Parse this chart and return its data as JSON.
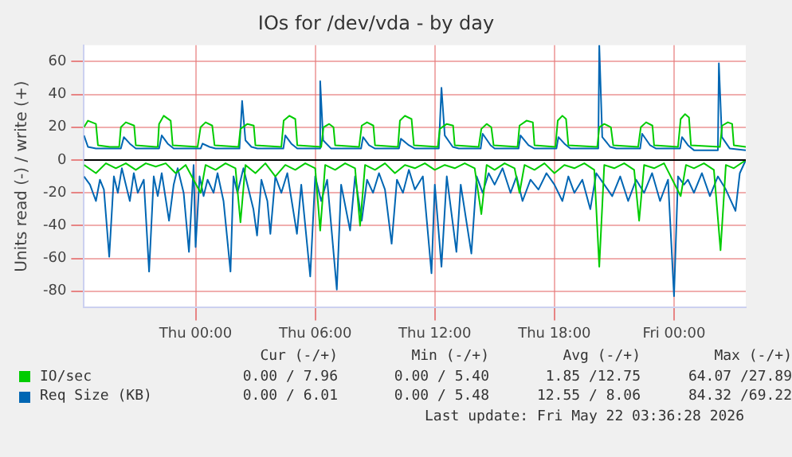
{
  "chart_data": {
    "type": "line",
    "title": "IOs for /dev/vda - by day",
    "ylabel": "Units read (-) / write (+)",
    "xlim": [
      "2026-05-20T18:24",
      "2026-05-22T03:36"
    ],
    "xticks": [
      {
        "value": "2026-05-21T00:00",
        "label": "Thu 00:00"
      },
      {
        "value": "2026-05-21T06:00",
        "label": "Thu 06:00"
      },
      {
        "value": "2026-05-21T12:00",
        "label": "Thu 12:00"
      },
      {
        "value": "2026-05-21T18:00",
        "label": "Thu 18:00"
      },
      {
        "value": "2026-05-22T00:00",
        "label": "Fri 00:00"
      }
    ],
    "ylim": [
      -90,
      70
    ],
    "yticks": [
      -80,
      -60,
      -40,
      -20,
      0,
      20,
      40,
      60
    ],
    "grid": true,
    "legend": "bottom",
    "marker": "none",
    "line_style": "solid",
    "ref_lines": [
      {
        "axis": "y",
        "value": 0,
        "color": "#000000"
      }
    ],
    "annotations": [
      "Cur (-/+)",
      "Min (-/+)",
      "Avg (-/+)",
      "Max (-/+)",
      "0.00 / 7.96",
      "0.00 / 5.40",
      "1.85 /12.75",
      "64.07 /27.89",
      "0.00 / 6.01",
      "0.00 / 5.48",
      "12.55 / 8.06",
      "84.32 /69.22",
      "Last update: Fri May 22 03:36:28 2026"
    ],
    "series": [
      {
        "color": "#00cc00",
        "x": [
          "2026-05-20T18:24",
          "2026-05-20T19:00",
          "2026-05-20T19:30",
          "2026-05-20T20:00",
          "2026-05-20T20:30",
          "2026-05-20T21:00",
          "2026-05-20T21:30",
          "2026-05-20T22:00",
          "2026-05-20T22:30",
          "2026-05-20T23:00",
          "2026-05-20T23:30",
          "2026-05-21T00:15",
          "2026-05-21T00:30",
          "2026-05-21T01:00",
          "2026-05-21T01:30",
          "2026-05-21T02:00",
          "2026-05-21T02:15",
          "2026-05-21T02:30",
          "2026-05-21T03:00",
          "2026-05-21T03:30",
          "2026-05-21T04:00",
          "2026-05-21T04:30",
          "2026-05-21T05:00",
          "2026-05-21T05:30",
          "2026-05-21T06:00",
          "2026-05-21T06:15",
          "2026-05-21T06:30",
          "2026-05-21T07:00",
          "2026-05-21T07:30",
          "2026-05-21T08:00",
          "2026-05-21T08:15",
          "2026-05-21T08:30",
          "2026-05-21T09:00",
          "2026-05-21T09:30",
          "2026-05-21T10:00",
          "2026-05-21T10:30",
          "2026-05-21T11:00",
          "2026-05-21T11:30",
          "2026-05-21T12:00",
          "2026-05-21T12:30",
          "2026-05-21T13:00",
          "2026-05-21T13:30",
          "2026-05-21T14:00",
          "2026-05-21T14:20",
          "2026-05-21T14:36",
          "2026-05-21T15:00",
          "2026-05-21T15:30",
          "2026-05-21T16:00",
          "2026-05-21T16:15",
          "2026-05-21T16:30",
          "2026-05-21T17:00",
          "2026-05-21T17:30",
          "2026-05-21T18:00",
          "2026-05-21T18:30",
          "2026-05-21T19:00",
          "2026-05-21T19:30",
          "2026-05-21T20:00",
          "2026-05-21T20:15",
          "2026-05-21T20:30",
          "2026-05-21T21:00",
          "2026-05-21T21:30",
          "2026-05-21T22:00",
          "2026-05-21T22:15",
          "2026-05-21T22:30",
          "2026-05-21T23:00",
          "2026-05-21T23:30",
          "2026-05-22T00:20",
          "2026-05-22T00:36",
          "2026-05-22T01:00",
          "2026-05-22T01:30",
          "2026-05-22T02:00",
          "2026-05-22T02:20",
          "2026-05-22T02:36",
          "2026-05-22T03:00",
          "2026-05-22T03:36"
        ],
        "values": [
          -3,
          -8,
          -2,
          -5,
          -2,
          -6,
          -2,
          -4,
          -2,
          -8,
          -3,
          -20,
          -3,
          -6,
          -2,
          -5,
          -38,
          -3,
          -8,
          -2,
          -10,
          -3,
          -6,
          -2,
          -5,
          -43,
          -3,
          -6,
          -2,
          -5,
          -40,
          -3,
          -6,
          -2,
          -8,
          -3,
          -5,
          -2,
          -6,
          -3,
          -5,
          -2,
          -5,
          -33,
          -3,
          -6,
          -2,
          -5,
          -20,
          -3,
          -6,
          -2,
          -8,
          -3,
          -5,
          -2,
          -6,
          -65,
          -3,
          -5,
          -2,
          -6,
          -37,
          -3,
          -5,
          -2,
          -22,
          -3,
          -5,
          -2,
          -6,
          -55,
          -3,
          -5,
          0
        ]
      },
      {
        "name": "IO/sec",
        "color": "#00cc00",
        "x": [
          "2026-05-20T18:24",
          "2026-05-20T18:36",
          "2026-05-20T19:00",
          "2026-05-20T19:06",
          "2026-05-20T19:42",
          "2026-05-20T20:10",
          "2026-05-20T20:15",
          "2026-05-20T20:30",
          "2026-05-20T20:55",
          "2026-05-20T21:00",
          "2026-05-20T22:00",
          "2026-05-20T22:06",
          "2026-05-20T22:10",
          "2026-05-20T22:24",
          "2026-05-20T22:45",
          "2026-05-20T22:51",
          "2026-05-21T00:06",
          "2026-05-21T00:15",
          "2026-05-21T00:30",
          "2026-05-21T00:50",
          "2026-05-21T00:57",
          "2026-05-21T02:09",
          "2026-05-21T02:15",
          "2026-05-21T02:36",
          "2026-05-21T02:55",
          "2026-05-21T03:00",
          "2026-05-21T04:18",
          "2026-05-21T04:25",
          "2026-05-21T04:42",
          "2026-05-21T05:00",
          "2026-05-21T05:06",
          "2026-05-21T06:18",
          "2026-05-21T06:25",
          "2026-05-21T06:42",
          "2026-05-21T06:55",
          "2026-05-21T07:00",
          "2026-05-21T08:12",
          "2026-05-21T08:20",
          "2026-05-21T08:36",
          "2026-05-21T08:55",
          "2026-05-21T09:00",
          "2026-05-21T10:09",
          "2026-05-21T10:15",
          "2026-05-21T10:30",
          "2026-05-21T10:50",
          "2026-05-21T10:57",
          "2026-05-21T12:09",
          "2026-05-21T12:15",
          "2026-05-21T12:36",
          "2026-05-21T12:55",
          "2026-05-21T13:00",
          "2026-05-21T14:12",
          "2026-05-21T14:20",
          "2026-05-21T14:36",
          "2026-05-21T14:50",
          "2026-05-21T14:57",
          "2026-05-21T16:09",
          "2026-05-21T16:15",
          "2026-05-21T16:36",
          "2026-05-21T16:55",
          "2026-05-21T17:00",
          "2026-05-21T18:03",
          "2026-05-21T18:10",
          "2026-05-21T18:24",
          "2026-05-21T18:35",
          "2026-05-21T18:42",
          "2026-05-21T20:09",
          "2026-05-21T20:15",
          "2026-05-21T20:30",
          "2026-05-21T20:50",
          "2026-05-21T20:57",
          "2026-05-21T22:12",
          "2026-05-21T22:20",
          "2026-05-21T22:36",
          "2026-05-21T22:55",
          "2026-05-21T23:00",
          "2026-05-22T00:12",
          "2026-05-22T00:20",
          "2026-05-22T00:33",
          "2026-05-22T00:45",
          "2026-05-22T00:51",
          "2026-05-22T02:18",
          "2026-05-22T02:25",
          "2026-05-22T02:42",
          "2026-05-22T02:55",
          "2026-05-22T03:00",
          "2026-05-22T03:36"
        ],
        "values": [
          20,
          24,
          22,
          9,
          8,
          8,
          20,
          23,
          21,
          9,
          8,
          8,
          22,
          27,
          24,
          9,
          8,
          20,
          23,
          21,
          9,
          8,
          19,
          22,
          21,
          9,
          8,
          24,
          27,
          25,
          9,
          8,
          20,
          22,
          20,
          9,
          8,
          21,
          23,
          21,
          9,
          8,
          24,
          27,
          25,
          9,
          8,
          19,
          22,
          21,
          9,
          8,
          19,
          22,
          20,
          9,
          8,
          21,
          24,
          23,
          9,
          8,
          24,
          27,
          25,
          9,
          8,
          20,
          22,
          20,
          9,
          8,
          20,
          23,
          21,
          9,
          8,
          25,
          28,
          26,
          9,
          8,
          21,
          23,
          22,
          9,
          8
        ]
      },
      {
        "color": "#0066b3",
        "x": [
          "2026-05-20T18:24",
          "2026-05-20T18:42",
          "2026-05-20T19:00",
          "2026-05-20T19:12",
          "2026-05-20T19:24",
          "2026-05-20T19:40",
          "2026-05-20T19:54",
          "2026-05-20T20:06",
          "2026-05-20T20:18",
          "2026-05-20T20:30",
          "2026-05-20T20:42",
          "2026-05-20T20:54",
          "2026-05-20T21:06",
          "2026-05-20T21:24",
          "2026-05-20T21:40",
          "2026-05-20T21:54",
          "2026-05-20T22:06",
          "2026-05-20T22:18",
          "2026-05-20T22:40",
          "2026-05-20T22:54",
          "2026-05-20T23:06",
          "2026-05-20T23:24",
          "2026-05-20T23:40",
          "2026-05-20T23:54",
          "2026-05-21T00:00",
          "2026-05-21T00:12",
          "2026-05-21T00:24",
          "2026-05-21T00:36",
          "2026-05-21T00:54",
          "2026-05-21T01:06",
          "2026-05-21T01:24",
          "2026-05-21T01:45",
          "2026-05-21T01:54",
          "2026-05-21T02:06",
          "2026-05-21T02:24",
          "2026-05-21T02:36",
          "2026-05-21T02:54",
          "2026-05-21T03:05",
          "2026-05-21T03:18",
          "2026-05-21T03:36",
          "2026-05-21T03:45",
          "2026-05-21T04:00",
          "2026-05-21T04:18",
          "2026-05-21T04:36",
          "2026-05-21T05:05",
          "2026-05-21T05:18",
          "2026-05-21T05:45",
          "2026-05-21T06:00",
          "2026-05-21T06:18",
          "2026-05-21T06:36",
          "2026-05-21T07:05",
          "2026-05-21T07:18",
          "2026-05-21T07:45",
          "2026-05-21T08:00",
          "2026-05-21T08:20",
          "2026-05-21T08:36",
          "2026-05-21T08:54",
          "2026-05-21T09:12",
          "2026-05-21T09:30",
          "2026-05-21T09:50",
          "2026-05-21T10:06",
          "2026-05-21T10:24",
          "2026-05-21T10:42",
          "2026-05-21T11:00",
          "2026-05-21T11:24",
          "2026-05-21T11:50",
          "2026-05-21T12:00",
          "2026-05-21T12:20",
          "2026-05-21T12:36",
          "2026-05-21T13:05",
          "2026-05-21T13:18",
          "2026-05-21T13:50",
          "2026-05-21T14:06",
          "2026-05-21T14:24",
          "2026-05-21T14:42",
          "2026-05-21T15:00",
          "2026-05-21T15:24",
          "2026-05-21T15:48",
          "2026-05-21T16:06",
          "2026-05-21T16:24",
          "2026-05-21T16:48",
          "2026-05-21T17:12",
          "2026-05-21T17:36",
          "2026-05-21T18:00",
          "2026-05-21T18:24",
          "2026-05-21T18:42",
          "2026-05-21T19:00",
          "2026-05-21T19:24",
          "2026-05-21T19:48",
          "2026-05-21T20:06",
          "2026-05-21T20:30",
          "2026-05-21T20:54",
          "2026-05-21T21:18",
          "2026-05-21T21:42",
          "2026-05-21T22:06",
          "2026-05-21T22:30",
          "2026-05-21T22:54",
          "2026-05-21T23:18",
          "2026-05-21T23:42",
          "2026-05-22T00:00",
          "2026-05-22T00:12",
          "2026-05-22T00:30",
          "2026-05-22T00:42",
          "2026-05-22T01:00",
          "2026-05-22T01:24",
          "2026-05-22T01:48",
          "2026-05-22T02:12",
          "2026-05-22T02:36",
          "2026-05-22T03:05",
          "2026-05-22T03:18",
          "2026-05-22T03:36"
        ],
        "values": [
          -10,
          -15,
          -25,
          -12,
          -18,
          -59,
          -10,
          -20,
          -5,
          -15,
          -25,
          -8,
          -20,
          -12,
          -68,
          -10,
          -22,
          -8,
          -37,
          -15,
          -5,
          -20,
          -56,
          -3,
          -53,
          -10,
          -22,
          -12,
          -20,
          -8,
          -25,
          -68,
          -10,
          -20,
          -5,
          -15,
          -30,
          -46,
          -12,
          -25,
          -45,
          -10,
          -20,
          -8,
          -45,
          -15,
          -71,
          -10,
          -25,
          -12,
          -79,
          -15,
          -43,
          -10,
          -37,
          -12,
          -20,
          -8,
          -18,
          -51,
          -12,
          -20,
          -6,
          -18,
          -10,
          -69,
          -15,
          -65,
          -10,
          -56,
          -15,
          -57,
          -10,
          -20,
          -8,
          -15,
          -5,
          -20,
          -10,
          -25,
          -12,
          -18,
          -8,
          -15,
          -25,
          -10,
          -20,
          -12,
          -30,
          -8,
          -15,
          -22,
          -10,
          -25,
          -12,
          -20,
          -8,
          -25,
          -12,
          -83,
          -10,
          -15,
          -12,
          -20,
          -8,
          -22,
          -10,
          -18,
          -31,
          -8,
          0
        ]
      },
      {
        "name": "Req Size (KB)",
        "color": "#0066b3",
        "x": [
          "2026-05-20T18:24",
          "2026-05-20T18:36",
          "2026-05-20T19:00",
          "2026-05-20T20:00",
          "2026-05-20T20:15",
          "2026-05-20T20:24",
          "2026-05-20T20:42",
          "2026-05-20T21:00",
          "2026-05-20T22:00",
          "2026-05-20T22:10",
          "2026-05-20T22:18",
          "2026-05-20T22:36",
          "2026-05-20T22:54",
          "2026-05-21T00:00",
          "2026-05-21T00:15",
          "2026-05-21T00:21",
          "2026-05-21T00:42",
          "2026-05-21T01:00",
          "2026-05-21T02:12",
          "2026-05-21T02:20",
          "2026-05-21T02:30",
          "2026-05-21T02:48",
          "2026-05-21T03:06",
          "2026-05-21T04:24",
          "2026-05-21T04:30",
          "2026-05-21T04:48",
          "2026-05-21T05:06",
          "2026-05-21T06:12",
          "2026-05-21T06:15",
          "2026-05-21T06:24",
          "2026-05-21T06:48",
          "2026-05-21T08:18",
          "2026-05-21T08:24",
          "2026-05-21T08:42",
          "2026-05-21T09:00",
          "2026-05-21T10:12",
          "2026-05-21T10:18",
          "2026-05-21T10:42",
          "2026-05-21T11:00",
          "2026-05-21T12:12",
          "2026-05-21T12:20",
          "2026-05-21T12:30",
          "2026-05-21T12:54",
          "2026-05-21T13:12",
          "2026-05-21T14:18",
          "2026-05-21T14:24",
          "2026-05-21T14:48",
          "2026-05-21T15:00",
          "2026-05-21T16:12",
          "2026-05-21T16:18",
          "2026-05-21T16:42",
          "2026-05-21T17:00",
          "2026-05-21T18:06",
          "2026-05-21T18:12",
          "2026-05-21T18:30",
          "2026-05-21T18:48",
          "2026-05-21T20:12",
          "2026-05-21T20:15",
          "2026-05-21T20:24",
          "2026-05-21T20:48",
          "2026-05-21T21:06",
          "2026-05-21T22:18",
          "2026-05-21T22:24",
          "2026-05-21T22:48",
          "2026-05-21T23:06",
          "2026-05-22T00:18",
          "2026-05-22T00:24",
          "2026-05-22T00:42",
          "2026-05-22T01:00",
          "2026-05-22T02:12",
          "2026-05-22T02:15",
          "2026-05-22T02:24",
          "2026-05-22T02:48",
          "2026-05-22T03:36"
        ],
        "values": [
          15,
          8,
          7,
          7,
          7,
          14,
          10,
          7,
          7,
          7,
          15,
          10,
          7,
          7,
          7,
          10,
          8,
          7,
          7,
          36,
          12,
          8,
          7,
          7,
          15,
          10,
          7,
          7,
          48,
          12,
          7,
          7,
          14,
          9,
          7,
          7,
          13,
          9,
          7,
          7,
          44,
          15,
          8,
          7,
          7,
          16,
          9,
          7,
          7,
          15,
          9,
          7,
          7,
          14,
          10,
          7,
          7,
          70,
          14,
          8,
          7,
          7,
          16,
          9,
          7,
          7,
          14,
          9,
          6,
          6,
          59,
          14,
          7,
          6
        ]
      }
    ]
  }
}
